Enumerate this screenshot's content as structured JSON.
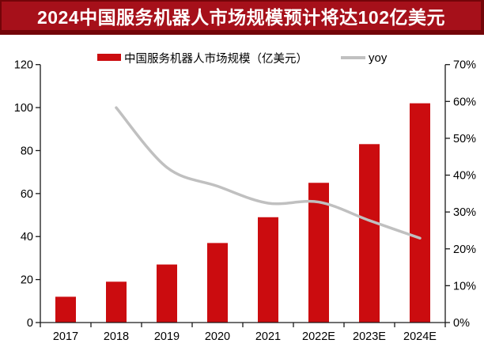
{
  "title": {
    "text": "2024中国服务机器人市场规模预计将达102亿美元"
  },
  "colors": {
    "title_bg": "#A6101A",
    "title_border": "#730509",
    "title_text": "#FFFFFF",
    "bar": "#CB0C0F",
    "line": "#C0C0C0",
    "axis": "#1A1A1A",
    "text": "#000000"
  },
  "legend": [
    {
      "label": "中国服务机器人市场规模（亿美元）",
      "swatch": "bar"
    },
    {
      "label": "yoy",
      "swatch": "line"
    }
  ],
  "chart_data": {
    "type": "bar",
    "subtype": "bar+line-combo",
    "title": "2024中国服务机器人市场规模预计将达102亿美元",
    "categories": [
      "2017",
      "2018",
      "2019",
      "2020",
      "2021",
      "2022E",
      "2023E",
      "2024E"
    ],
    "series": [
      {
        "name": "中国服务机器人市场规模（亿美元）",
        "type": "bar",
        "axis": "left",
        "values": [
          12,
          19,
          27,
          37,
          49,
          65,
          83,
          102
        ]
      },
      {
        "name": "yoy",
        "type": "line",
        "axis": "right",
        "unit": "%",
        "values": [
          null,
          58.3,
          42.1,
          37.0,
          32.4,
          32.7,
          27.7,
          22.9
        ]
      }
    ],
    "left_axis": {
      "min": 0,
      "max": 120,
      "ticks": [
        "0",
        "20",
        "40",
        "60",
        "80",
        "100",
        "120"
      ]
    },
    "right_axis": {
      "min": 0,
      "max": 70,
      "ticks": [
        "0%",
        "10%",
        "20%",
        "30%",
        "40%",
        "50%",
        "60%",
        "70%"
      ]
    },
    "grid": false,
    "legend_position": "top"
  }
}
